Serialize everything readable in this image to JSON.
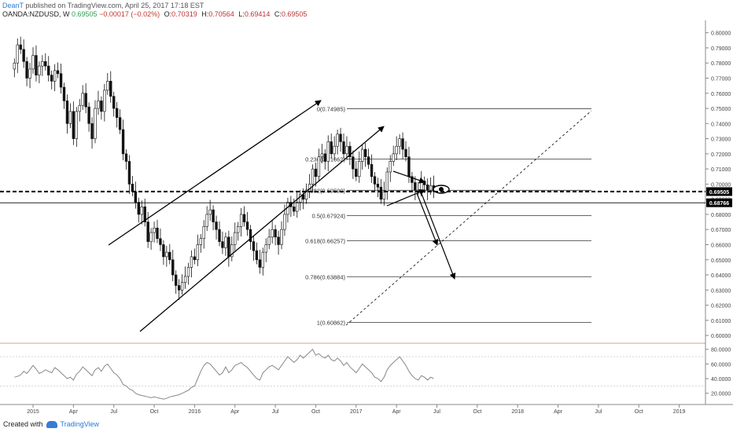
{
  "header": {
    "author": "DeanT",
    "published_text": "published on TradingView.com, April 25, 2017 17:18 EST",
    "symbol": "OANDA:NZDUSD, W",
    "last": "0.69505",
    "change": "−0.00017 (−0.02%)",
    "open_label": "O:",
    "open": "0.70319",
    "high_label": "H:",
    "high": "0.70564",
    "low_label": "L:",
    "low": "0.69414",
    "close_label": "C:",
    "close": "0.69505"
  },
  "footer": {
    "created_with": "Created with",
    "brand": "TradingView"
  },
  "colors": {
    "bull": "#ffffff",
    "bear": "#111111",
    "axis_text": "#444444",
    "price_tag": "#000000",
    "rsi_line": "#888888",
    "dashed_level": "#000000"
  },
  "chart_data": {
    "type": "candlestick",
    "price_axis": {
      "ticks": [
        "0.80000",
        "0.79000",
        "0.78000",
        "0.77000",
        "0.76000",
        "0.75000",
        "0.74000",
        "0.73000",
        "0.72000",
        "0.71000",
        "0.70000",
        "0.69000",
        "0.68000",
        "0.67000",
        "0.66000",
        "0.65000",
        "0.64000",
        "0.63000",
        "0.62000",
        "0.61000",
        "0.60000"
      ],
      "tick_values": [
        0.8,
        0.79,
        0.78,
        0.77,
        0.76,
        0.75,
        0.74,
        0.73,
        0.72,
        0.71,
        0.7,
        0.69,
        0.68,
        0.67,
        0.66,
        0.65,
        0.64,
        0.63,
        0.62,
        0.61,
        0.6
      ],
      "range": [
        0.5985,
        0.8045
      ],
      "current_price_tag": "0.69505",
      "current_price": 0.69505,
      "level_tag": "0.68766",
      "level_price": 0.68766
    },
    "time_axis": {
      "ticks": [
        "2015",
        "Apr",
        "Jul",
        "Oct",
        "2016",
        "Apr",
        "Jul",
        "Oct",
        "2017",
        "Apr",
        "Jul",
        "Oct",
        "2018",
        "Apr",
        "Jul",
        "Oct",
        "2019"
      ],
      "tick_week_index": [
        0,
        13,
        26,
        39,
        52,
        65,
        78,
        91,
        104,
        117,
        130,
        143,
        156,
        169,
        182,
        195,
        208
      ]
    },
    "fib_levels": [
      {
        "label": "0(0.74985)",
        "price": 0.74985
      },
      {
        "label": "0.236(0.71662)",
        "price": 0.71662
      },
      {
        "label": "0.382(0.69590)",
        "price": 0.6959
      },
      {
        "label": "0.5(0.67924)",
        "price": 0.67924
      },
      {
        "label": "0.618(0.66257)",
        "price": 0.66257
      },
      {
        "label": "0.786(0.63884)",
        "price": 0.63884
      },
      {
        "label": "1(0.60862)",
        "price": 0.60862
      }
    ],
    "closes": [
      0.78,
      0.792,
      0.789,
      0.781,
      0.77,
      0.776,
      0.785,
      0.772,
      0.778,
      0.781,
      0.778,
      0.772,
      0.768,
      0.775,
      0.773,
      0.764,
      0.755,
      0.74,
      0.748,
      0.73,
      0.748,
      0.752,
      0.76,
      0.751,
      0.74,
      0.73,
      0.75,
      0.755,
      0.748,
      0.762,
      0.768,
      0.758,
      0.75,
      0.744,
      0.736,
      0.72,
      0.715,
      0.7,
      0.695,
      0.688,
      0.68,
      0.685,
      0.675,
      0.662,
      0.668,
      0.671,
      0.664,
      0.66,
      0.652,
      0.655,
      0.65,
      0.64,
      0.633,
      0.63,
      0.635,
      0.639,
      0.645,
      0.652,
      0.65,
      0.66,
      0.664,
      0.672,
      0.68,
      0.683,
      0.675,
      0.67,
      0.662,
      0.658,
      0.665,
      0.652,
      0.66,
      0.668,
      0.672,
      0.68,
      0.675,
      0.67,
      0.662,
      0.656,
      0.65,
      0.645,
      0.655,
      0.66,
      0.665,
      0.67,
      0.665,
      0.66,
      0.67,
      0.68,
      0.688,
      0.685,
      0.682,
      0.688,
      0.693,
      0.69,
      0.695,
      0.7,
      0.71,
      0.705,
      0.718,
      0.72,
      0.715,
      0.728,
      0.72,
      0.725,
      0.733,
      0.728,
      0.72,
      0.725,
      0.718,
      0.71,
      0.705,
      0.715,
      0.723,
      0.718,
      0.713,
      0.705,
      0.7,
      0.698,
      0.69,
      0.695,
      0.708,
      0.715,
      0.72,
      0.725,
      0.73,
      0.723,
      0.718,
      0.705,
      0.701,
      0.696,
      0.696,
      0.702,
      0.6995,
      0.696,
      0.699,
      0.695
    ],
    "rsi": {
      "ticks": [
        "80.0000",
        "60.0000",
        "40.0000",
        "20.0000"
      ],
      "tick_values": [
        80,
        60,
        40,
        20
      ],
      "upper_band": 70,
      "lower_band": 30,
      "values": [
        42,
        43,
        45,
        50,
        47,
        52,
        58,
        53,
        47,
        49,
        52,
        50,
        48,
        55,
        52,
        48,
        44,
        40,
        42,
        38,
        46,
        50,
        56,
        52,
        48,
        44,
        52,
        55,
        50,
        57,
        60,
        54,
        48,
        45,
        40,
        32,
        30,
        26,
        24,
        20,
        18,
        17,
        16,
        15,
        14,
        15,
        14,
        13,
        12,
        13,
        15,
        16,
        17,
        18,
        20,
        22,
        24,
        28,
        30,
        40,
        50,
        58,
        62,
        60,
        55,
        50,
        45,
        48,
        56,
        48,
        52,
        58,
        60,
        62,
        58,
        55,
        50,
        45,
        40,
        38,
        48,
        52,
        56,
        58,
        55,
        52,
        58,
        64,
        70,
        66,
        62,
        66,
        72,
        68,
        72,
        76,
        80,
        72,
        74,
        70,
        68,
        72,
        66,
        64,
        68,
        64,
        58,
        62,
        56,
        52,
        48,
        54,
        60,
        56,
        52,
        48,
        42,
        40,
        36,
        42,
        52,
        58,
        62,
        66,
        70,
        64,
        58,
        50,
        44,
        40,
        38,
        44,
        42,
        38,
        42,
        40
      ]
    }
  }
}
